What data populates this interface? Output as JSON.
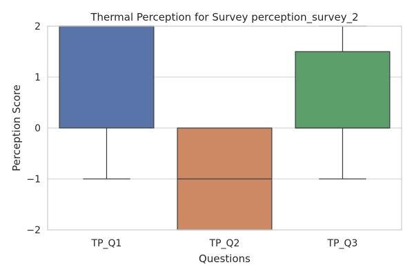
{
  "chart_data": {
    "type": "box",
    "title": "Thermal Perception for Survey perception_survey_2",
    "xlabel": "Questions",
    "ylabel": "Perception Score",
    "ylim": [
      -2,
      2
    ],
    "yticks": [
      2,
      1,
      0,
      -1,
      -2
    ],
    "ytick_labels": [
      "2",
      "1",
      "0",
      "−1",
      "−2"
    ],
    "grid": true,
    "categories": [
      "TP_Q1",
      "TP_Q2",
      "TP_Q3"
    ],
    "boxes": [
      {
        "category": "TP_Q1",
        "whisker_low": -1,
        "q1": 0,
        "median": 2,
        "q3": 2,
        "whisker_high": 2,
        "color": "#5874a8"
      },
      {
        "category": "TP_Q2",
        "whisker_low": -2,
        "q1": -2,
        "median": -1,
        "q3": 0,
        "whisker_high": 0,
        "color": "#cc8963"
      },
      {
        "category": "TP_Q3",
        "whisker_low": -1,
        "q1": 0,
        "median": 0,
        "q3": 1.5,
        "whisker_high": 2,
        "color": "#5c9f6b"
      }
    ]
  }
}
